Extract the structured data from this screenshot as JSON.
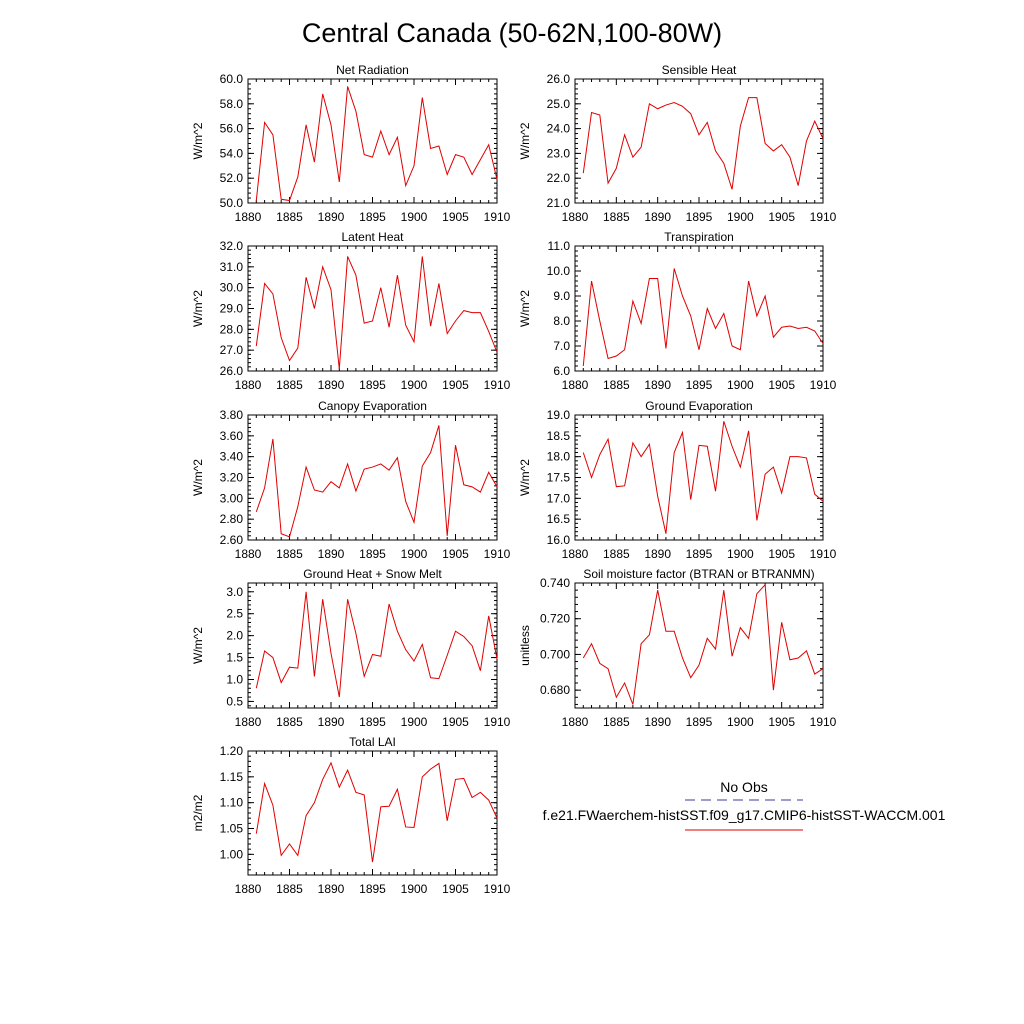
{
  "figure_title": "Central Canada (50-62N,100-80W)",
  "colors": {
    "model": "#e00000",
    "obs": "#3a3a9a",
    "axis": "#000000"
  },
  "legend": {
    "obs_label": "No Obs",
    "model_label": "f.e21.FWaerchem-histSST.f09_g17.CMIP6-histSST-WACCM.001"
  },
  "chart_data": [
    {
      "type": "line",
      "title": "Net Radiation",
      "ylabel": "W/m^2",
      "xlim": [
        1880,
        1910
      ],
      "ylim": [
        50,
        60
      ],
      "x_ticks": [
        "1880",
        "1885",
        "1890",
        "1895",
        "1900",
        "1905",
        "1910"
      ],
      "y_ticks": [
        "50.0",
        "52.0",
        "54.0",
        "56.0",
        "58.0",
        "60.0"
      ],
      "series": [
        {
          "x": [
            1881,
            1882,
            1883,
            1884,
            1885,
            1886,
            1887,
            1888,
            1889,
            1890,
            1891,
            1892,
            1893,
            1894,
            1895,
            1896,
            1897,
            1898,
            1899,
            1900,
            1901,
            1902,
            1903,
            1904,
            1905,
            1906,
            1907,
            1908,
            1909,
            1910
          ],
          "values": [
            50.2,
            56.5,
            55.5,
            50.3,
            50.2,
            52.1,
            56.3,
            53.3,
            58.8,
            56.3,
            51.7,
            59.4,
            57.4,
            53.9,
            53.7,
            55.8,
            53.9,
            55.3,
            51.4,
            53.0,
            58.5,
            54.4,
            54.6,
            52.3,
            53.9,
            53.7,
            52.3,
            53.5,
            54.7,
            51.9
          ]
        }
      ]
    },
    {
      "type": "line",
      "title": "Sensible Heat",
      "ylabel": "W/m^2",
      "xlim": [
        1880,
        1910
      ],
      "ylim": [
        21,
        26
      ],
      "x_ticks": [
        "1880",
        "1885",
        "1890",
        "1895",
        "1900",
        "1905",
        "1910"
      ],
      "y_ticks": [
        "21.0",
        "22.0",
        "23.0",
        "24.0",
        "25.0",
        "26.0"
      ],
      "series": [
        {
          "x": [
            1881,
            1882,
            1883,
            1884,
            1885,
            1886,
            1887,
            1888,
            1889,
            1890,
            1891,
            1892,
            1893,
            1894,
            1895,
            1896,
            1897,
            1898,
            1899,
            1900,
            1901,
            1902,
            1903,
            1904,
            1905,
            1906,
            1907,
            1908,
            1909,
            1910
          ],
          "values": [
            22.2,
            24.65,
            24.55,
            21.8,
            22.4,
            23.75,
            22.85,
            23.25,
            25.0,
            24.8,
            24.95,
            25.05,
            24.9,
            24.6,
            23.75,
            24.25,
            23.1,
            22.6,
            21.55,
            24.1,
            25.25,
            25.25,
            23.4,
            23.1,
            23.35,
            22.85,
            21.7,
            23.5,
            24.3,
            23.6
          ]
        }
      ]
    },
    {
      "type": "line",
      "title": "Latent Heat",
      "ylabel": "W/m^2",
      "xlim": [
        1880,
        1910
      ],
      "ylim": [
        26,
        32
      ],
      "x_ticks": [
        "1880",
        "1885",
        "1890",
        "1895",
        "1900",
        "1905",
        "1910"
      ],
      "y_ticks": [
        "26.0",
        "27.0",
        "28.0",
        "29.0",
        "30.0",
        "31.0",
        "32.0"
      ],
      "series": [
        {
          "x": [
            1881,
            1882,
            1883,
            1884,
            1885,
            1886,
            1887,
            1888,
            1889,
            1890,
            1891,
            1892,
            1893,
            1894,
            1895,
            1896,
            1897,
            1898,
            1899,
            1900,
            1901,
            1902,
            1903,
            1904,
            1905,
            1906,
            1907,
            1908,
            1909,
            1910
          ],
          "values": [
            27.2,
            30.2,
            29.7,
            27.6,
            26.5,
            27.1,
            30.5,
            29.0,
            31.0,
            29.9,
            26.1,
            31.5,
            30.6,
            28.3,
            28.4,
            30.0,
            28.1,
            30.6,
            28.2,
            27.4,
            31.5,
            28.15,
            30.2,
            27.8,
            28.4,
            28.9,
            28.8,
            28.8,
            27.9,
            26.9
          ]
        }
      ]
    },
    {
      "type": "line",
      "title": "Transpiration",
      "ylabel": "W/m^2",
      "xlim": [
        1880,
        1910
      ],
      "ylim": [
        6,
        11
      ],
      "x_ticks": [
        "1880",
        "1885",
        "1890",
        "1895",
        "1900",
        "1905",
        "1910"
      ],
      "y_ticks": [
        "6.0",
        "7.0",
        "8.0",
        "9.0",
        "10.0",
        "11.0"
      ],
      "series": [
        {
          "x": [
            1881,
            1882,
            1883,
            1884,
            1885,
            1886,
            1887,
            1888,
            1889,
            1890,
            1891,
            1892,
            1893,
            1894,
            1895,
            1896,
            1897,
            1898,
            1899,
            1900,
            1901,
            1902,
            1903,
            1904,
            1905,
            1906,
            1907,
            1908,
            1909,
            1910
          ],
          "values": [
            6.2,
            9.6,
            8.0,
            6.5,
            6.6,
            6.85,
            8.8,
            7.9,
            9.7,
            9.7,
            6.9,
            10.1,
            9.0,
            8.2,
            6.85,
            8.5,
            7.7,
            8.3,
            7.0,
            6.85,
            9.6,
            8.2,
            9.0,
            7.35,
            7.75,
            7.8,
            7.7,
            7.75,
            7.6,
            7.1
          ]
        }
      ]
    },
    {
      "type": "line",
      "title": "Canopy Evaporation",
      "ylabel": "W/m^2",
      "xlim": [
        1880,
        1910
      ],
      "ylim": [
        2.6,
        3.8
      ],
      "x_ticks": [
        "1880",
        "1885",
        "1890",
        "1895",
        "1900",
        "1905",
        "1910"
      ],
      "y_ticks": [
        "2.60",
        "2.80",
        "3.00",
        "3.20",
        "3.40",
        "3.60",
        "3.80"
      ],
      "series": [
        {
          "x": [
            1881,
            1882,
            1883,
            1884,
            1885,
            1886,
            1887,
            1888,
            1889,
            1890,
            1891,
            1892,
            1893,
            1894,
            1895,
            1896,
            1897,
            1898,
            1899,
            1900,
            1901,
            1902,
            1903,
            1904,
            1905,
            1906,
            1907,
            1908,
            1909,
            1910
          ],
          "values": [
            2.87,
            3.1,
            3.57,
            2.66,
            2.63,
            2.92,
            3.3,
            3.08,
            3.06,
            3.16,
            3.1,
            3.33,
            3.07,
            3.28,
            3.3,
            3.33,
            3.27,
            3.39,
            2.97,
            2.77,
            3.31,
            3.44,
            3.7,
            2.64,
            3.51,
            3.13,
            3.11,
            3.06,
            3.25,
            3.11
          ]
        }
      ]
    },
    {
      "type": "line",
      "title": "Ground Evaporation",
      "ylabel": "W/m^2",
      "xlim": [
        1880,
        1910
      ],
      "ylim": [
        16,
        19
      ],
      "x_ticks": [
        "1880",
        "1885",
        "1890",
        "1895",
        "1900",
        "1905",
        "1910"
      ],
      "y_ticks": [
        "16.0",
        "16.5",
        "17.0",
        "17.5",
        "18.0",
        "18.5",
        "19.0"
      ],
      "series": [
        {
          "x": [
            1881,
            1882,
            1883,
            1884,
            1885,
            1886,
            1887,
            1888,
            1889,
            1890,
            1891,
            1892,
            1893,
            1894,
            1895,
            1896,
            1897,
            1898,
            1899,
            1900,
            1901,
            1902,
            1903,
            1904,
            1905,
            1906,
            1907,
            1908,
            1909,
            1910
          ],
          "values": [
            18.1,
            17.5,
            18.05,
            18.42,
            17.28,
            17.3,
            18.33,
            18.0,
            18.3,
            17.05,
            16.15,
            18.1,
            18.58,
            16.97,
            18.27,
            18.25,
            17.17,
            18.85,
            18.25,
            17.75,
            18.62,
            16.47,
            17.58,
            17.75,
            17.13,
            18.0,
            18.0,
            17.97,
            17.1,
            16.93
          ]
        }
      ]
    },
    {
      "type": "line",
      "title": "Ground Heat + Snow Melt",
      "ylabel": "W/m^2",
      "xlim": [
        1880,
        1910
      ],
      "ylim": [
        0.35,
        3.2
      ],
      "x_ticks": [
        "1880",
        "1885",
        "1890",
        "1895",
        "1900",
        "1905",
        "1910"
      ],
      "y_ticks": [
        "0.5",
        "1.0",
        "1.5",
        "2.0",
        "2.5",
        "3.0"
      ],
      "series": [
        {
          "x": [
            1881,
            1882,
            1883,
            1884,
            1885,
            1886,
            1887,
            1888,
            1889,
            1890,
            1891,
            1892,
            1893,
            1894,
            1895,
            1896,
            1897,
            1898,
            1899,
            1900,
            1901,
            1902,
            1903,
            1904,
            1905,
            1906,
            1907,
            1908,
            1909,
            1910
          ],
          "values": [
            0.8,
            1.65,
            1.5,
            0.93,
            1.28,
            1.26,
            3.0,
            1.07,
            2.83,
            1.6,
            0.6,
            2.83,
            2.05,
            1.07,
            1.57,
            1.53,
            2.72,
            2.1,
            1.68,
            1.42,
            1.8,
            1.04,
            1.02,
            1.55,
            2.1,
            1.98,
            1.77,
            1.2,
            2.45,
            1.47
          ]
        }
      ]
    },
    {
      "type": "line",
      "title": "Soil moisture factor (BTRAN or BTRANMN)",
      "ylabel": "unitless",
      "xlim": [
        1880,
        1910
      ],
      "ylim": [
        0.67,
        0.74
      ],
      "x_ticks": [
        "1880",
        "1885",
        "1890",
        "1895",
        "1900",
        "1905",
        "1910"
      ],
      "y_ticks": [
        "0.680",
        "0.700",
        "0.720",
        "0.740"
      ],
      "series": [
        {
          "x": [
            1881,
            1882,
            1883,
            1884,
            1885,
            1886,
            1887,
            1888,
            1889,
            1890,
            1891,
            1892,
            1893,
            1894,
            1895,
            1896,
            1897,
            1898,
            1899,
            1900,
            1901,
            1902,
            1903,
            1904,
            1905,
            1906,
            1907,
            1908,
            1909,
            1910
          ],
          "values": [
            0.698,
            0.706,
            0.695,
            0.692,
            0.676,
            0.684,
            0.672,
            0.706,
            0.711,
            0.736,
            0.713,
            0.713,
            0.698,
            0.687,
            0.694,
            0.709,
            0.703,
            0.736,
            0.699,
            0.715,
            0.709,
            0.734,
            0.739,
            0.68,
            0.718,
            0.697,
            0.698,
            0.702,
            0.689,
            0.692
          ]
        }
      ]
    },
    {
      "type": "line",
      "title": "Total LAI",
      "ylabel": "m2/m2",
      "xlim": [
        1880,
        1910
      ],
      "ylim": [
        0.96,
        1.2
      ],
      "x_ticks": [
        "1880",
        "1885",
        "1890",
        "1895",
        "1900",
        "1905",
        "1910"
      ],
      "y_ticks": [
        "1.00",
        "1.05",
        "1.10",
        "1.15",
        "1.20"
      ],
      "series": [
        {
          "x": [
            1881,
            1882,
            1883,
            1884,
            1885,
            1886,
            1887,
            1888,
            1889,
            1890,
            1891,
            1892,
            1893,
            1894,
            1895,
            1896,
            1897,
            1898,
            1899,
            1900,
            1901,
            1902,
            1903,
            1904,
            1905,
            1906,
            1907,
            1908,
            1909,
            1910
          ],
          "values": [
            1.04,
            1.137,
            1.095,
            0.998,
            1.02,
            0.998,
            1.075,
            1.1,
            1.145,
            1.177,
            1.13,
            1.163,
            1.12,
            1.115,
            0.985,
            1.092,
            1.093,
            1.126,
            1.053,
            1.052,
            1.15,
            1.165,
            1.176,
            1.065,
            1.145,
            1.147,
            1.11,
            1.12,
            1.105,
            1.07
          ]
        }
      ]
    }
  ]
}
